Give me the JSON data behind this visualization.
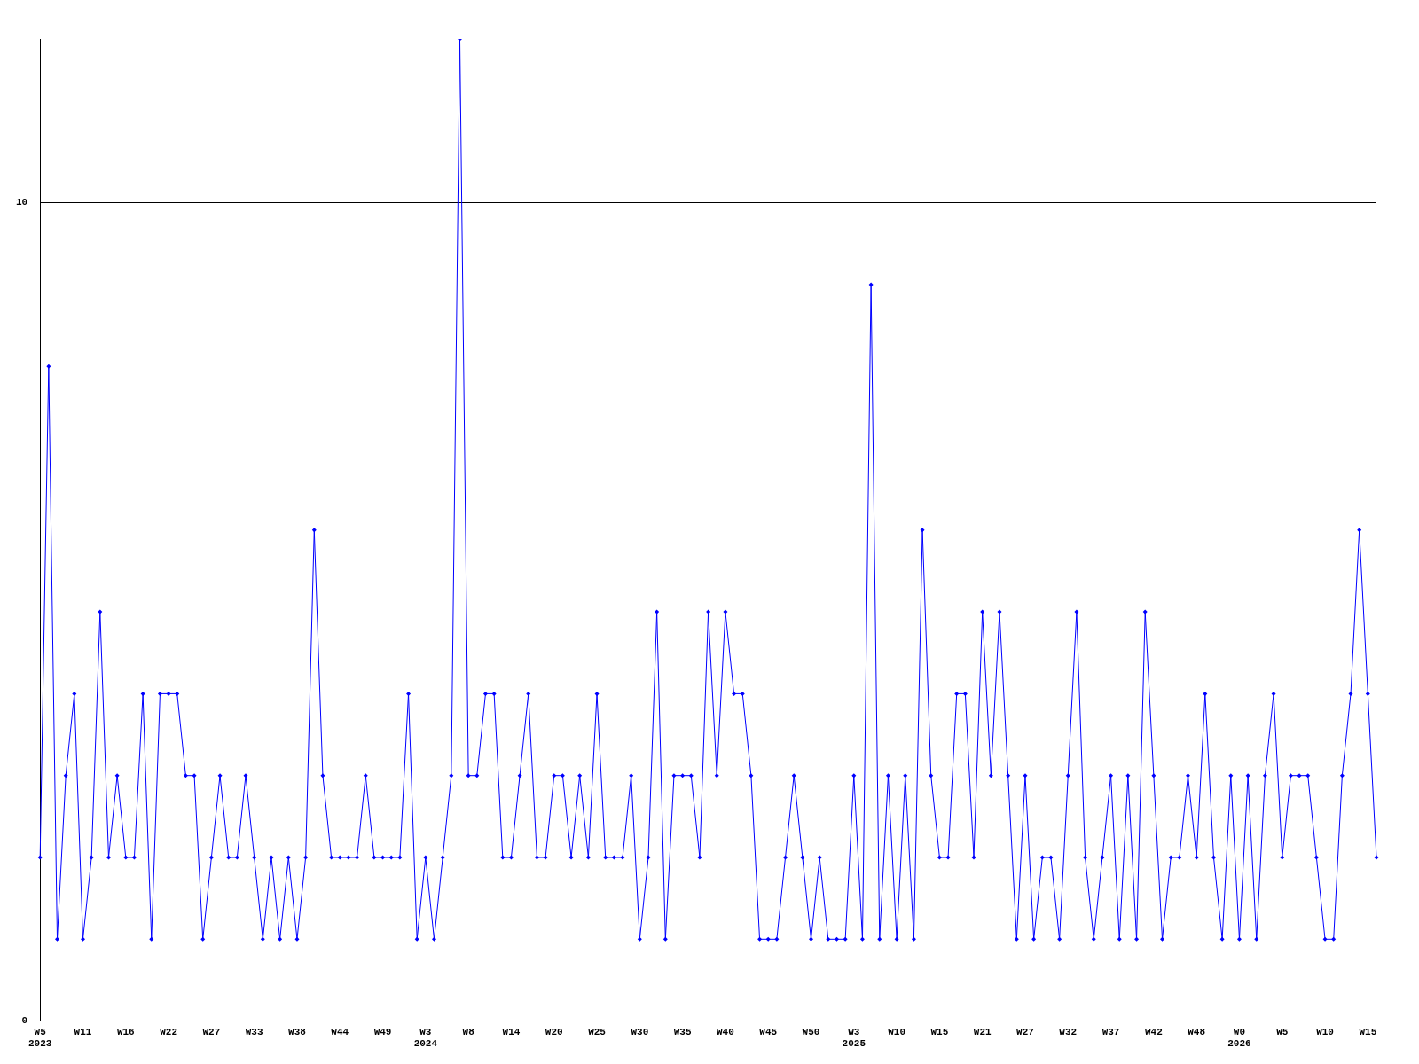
{
  "chart_data": {
    "type": "line",
    "categories": [
      "W5\n2023",
      null,
      null,
      null,
      null,
      "W11",
      null,
      null,
      null,
      null,
      "W16",
      null,
      null,
      null,
      null,
      "W22",
      null,
      null,
      null,
      null,
      "W27",
      null,
      null,
      null,
      null,
      "W33",
      null,
      null,
      null,
      null,
      "W38",
      null,
      null,
      null,
      null,
      "W44",
      null,
      null,
      null,
      null,
      "W49",
      null,
      null,
      null,
      null,
      "W3\n2024",
      null,
      null,
      null,
      null,
      "W8",
      null,
      null,
      null,
      null,
      "W14",
      null,
      null,
      null,
      null,
      "W20",
      null,
      null,
      null,
      null,
      "W25",
      null,
      null,
      null,
      null,
      "W30",
      null,
      null,
      null,
      null,
      "W35",
      null,
      null,
      null,
      null,
      "W40",
      null,
      null,
      null,
      null,
      "W45",
      null,
      null,
      null,
      null,
      "W50",
      null,
      null,
      null,
      null,
      "W3\n2025",
      null,
      null,
      null,
      null,
      "W10",
      null,
      null,
      null,
      null,
      "W15",
      null,
      null,
      null,
      null,
      "W21",
      null,
      null,
      null,
      null,
      "W27",
      null,
      null,
      null,
      null,
      "W32",
      null,
      null,
      null,
      null,
      "W37",
      null,
      null,
      null,
      null,
      "W42",
      null,
      null,
      null,
      null,
      "W48",
      null,
      null,
      null,
      null,
      "W0\n2026",
      null,
      null,
      null,
      null,
      "W5",
      null,
      null,
      null,
      null,
      "W10",
      null,
      null,
      null,
      null,
      "W15",
      null
    ],
    "series": [
      {
        "color": "#0000ff",
        "values": [
          2,
          8,
          1,
          3,
          4,
          1,
          2,
          5,
          2,
          3,
          2,
          2,
          4,
          1,
          4,
          4,
          4,
          3,
          3,
          1,
          2,
          3,
          2,
          2,
          3,
          2,
          1,
          2,
          1,
          2,
          1,
          2,
          6,
          3,
          2,
          2,
          2,
          2,
          3,
          2,
          2,
          2,
          2,
          4,
          1,
          2,
          1,
          2,
          3,
          12,
          3,
          3,
          4,
          4,
          2,
          2,
          3,
          4,
          2,
          2,
          3,
          3,
          2,
          3,
          2,
          4,
          2,
          2,
          2,
          3,
          1,
          2,
          5,
          1,
          3,
          3,
          3,
          2,
          5,
          3,
          5,
          4,
          4,
          3,
          1,
          1,
          1,
          2,
          3,
          2,
          1,
          2,
          1,
          1,
          1,
          3,
          1,
          9,
          1,
          3,
          1,
          3,
          1,
          6,
          3,
          2,
          2,
          4,
          4,
          2,
          5,
          3,
          5,
          3,
          1,
          3,
          1,
          2,
          2,
          1,
          3,
          5,
          2,
          1,
          2,
          3,
          1,
          3,
          1,
          5,
          3,
          1,
          2,
          2,
          3,
          2,
          4,
          2,
          1,
          3,
          1,
          3,
          1,
          3,
          4,
          2,
          3,
          3,
          3,
          2,
          1,
          1,
          3,
          4,
          6,
          4,
          2
        ]
      }
    ],
    "ylim": [
      0,
      12
    ],
    "yticks": [
      0,
      10
    ],
    "grid": "y",
    "legend": false,
    "marker": "diamond",
    "line_style": "solid"
  }
}
